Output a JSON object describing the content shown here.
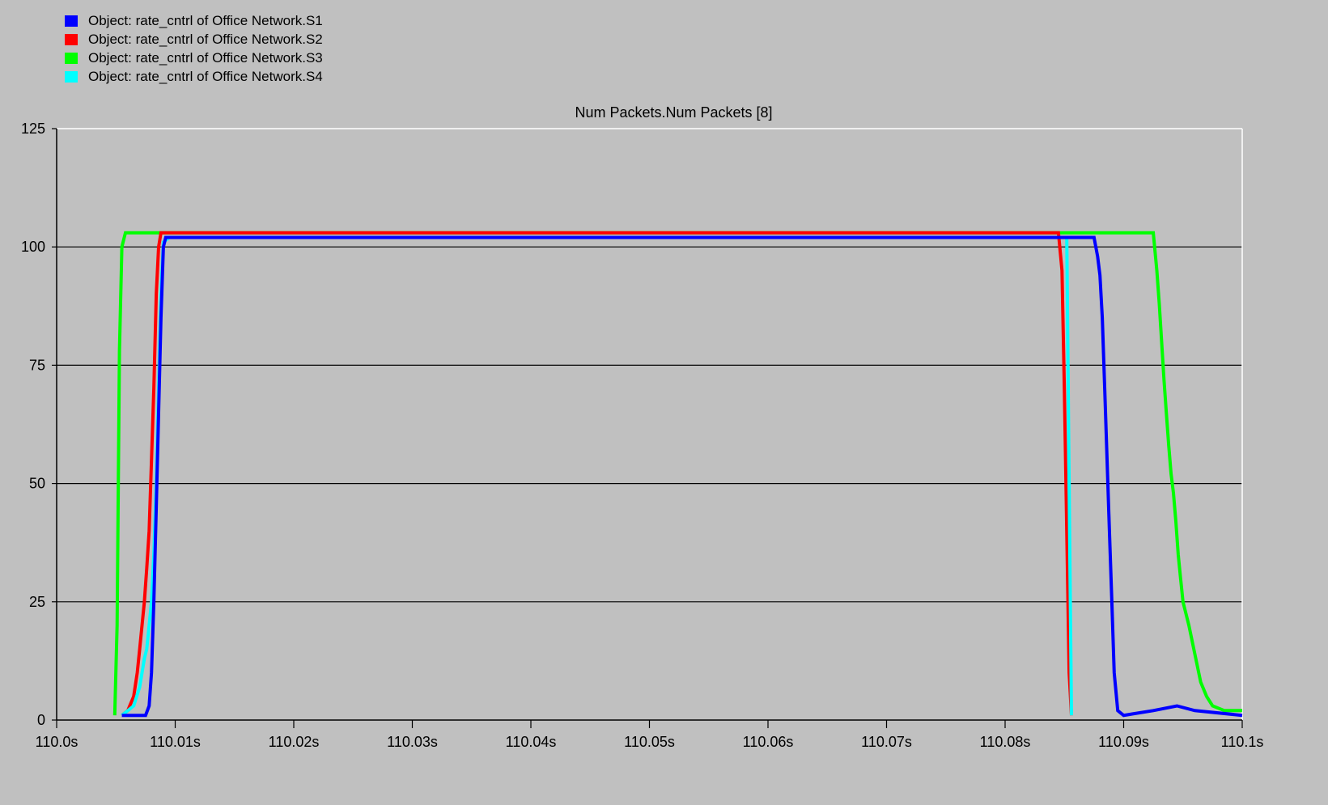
{
  "chart_data": {
    "type": "line",
    "title": "Num Packets.Num Packets [8]",
    "xlabel": "",
    "ylabel": "",
    "xlim": [
      110.0,
      110.1
    ],
    "ylim": [
      0,
      125
    ],
    "grid": "horizontal",
    "legend_position": "top-left",
    "y_ticks": [
      {
        "value": 0,
        "label": "0"
      },
      {
        "value": 25,
        "label": "25"
      },
      {
        "value": 50,
        "label": "50"
      },
      {
        "value": 75,
        "label": "75"
      },
      {
        "value": 100,
        "label": "100"
      },
      {
        "value": 125,
        "label": "125"
      }
    ],
    "x_ticks": [
      {
        "value": 110.0,
        "label": "110.0s"
      },
      {
        "value": 110.01,
        "label": "110.01s"
      },
      {
        "value": 110.02,
        "label": "110.02s"
      },
      {
        "value": 110.03,
        "label": "110.03s"
      },
      {
        "value": 110.04,
        "label": "110.04s"
      },
      {
        "value": 110.05,
        "label": "110.05s"
      },
      {
        "value": 110.06,
        "label": "110.06s"
      },
      {
        "value": 110.07,
        "label": "110.07s"
      },
      {
        "value": 110.08,
        "label": "110.08s"
      },
      {
        "value": 110.09,
        "label": "110.09s"
      },
      {
        "value": 110.1,
        "label": "110.1s"
      }
    ],
    "series": [
      {
        "name": "Object: rate_cntrl of Office Network.S3",
        "color": "#00ff00",
        "x": [
          110.0049,
          110.0051,
          110.0052,
          110.0053,
          110.0055,
          110.0058,
          110.0075,
          110.0085,
          110.088,
          110.0925,
          110.0928,
          110.093,
          110.0932,
          110.0934,
          110.0936,
          110.0938,
          110.094,
          110.0942,
          110.0944,
          110.0946,
          110.0948,
          110.095,
          110.0955,
          110.096,
          110.0965,
          110.097,
          110.0975,
          110.0985,
          110.099,
          110.1
        ],
        "y": [
          1,
          20,
          50,
          78,
          100,
          103,
          103,
          103,
          103,
          103,
          95,
          88,
          80,
          72,
          65,
          58,
          52,
          48,
          42,
          35,
          30,
          25,
          20,
          14,
          8,
          5,
          3,
          2,
          2,
          2
        ]
      },
      {
        "name": "Object: rate_cntrl of Office Network.S2",
        "color": "#ff0000",
        "x": [
          110.0055,
          110.006,
          110.0065,
          110.0068,
          110.007,
          110.0072,
          110.0074,
          110.0076,
          110.0078,
          110.008,
          110.0082,
          110.0084,
          110.0086,
          110.0088,
          110.0095,
          110.0845,
          110.0848,
          110.085,
          110.0852,
          110.0854,
          110.0856
        ],
        "y": [
          1,
          2,
          5,
          10,
          15,
          20,
          25,
          32,
          40,
          55,
          70,
          90,
          100,
          103,
          103,
          103,
          95,
          70,
          40,
          10,
          1
        ]
      },
      {
        "name": "Object: rate_cntrl of Office Network.S4",
        "color": "#00ffff",
        "x": [
          110.0055,
          110.0065,
          110.007,
          110.0072,
          110.0074,
          110.0076,
          110.0078,
          110.008,
          110.0082,
          110.0084,
          110.0086,
          110.0088,
          110.009,
          110.0095,
          110.0375,
          110.0852,
          110.0854,
          110.0856
        ],
        "y": [
          1,
          3,
          7,
          10,
          13,
          15,
          20,
          25,
          35,
          50,
          70,
          90,
          101,
          102,
          102,
          102,
          50,
          1
        ]
      },
      {
        "name": "Object: rate_cntrl of Office Network.S1",
        "color": "#0000ff",
        "x": [
          110.0055,
          110.0075,
          110.0078,
          110.008,
          110.0082,
          110.0084,
          110.0086,
          110.0088,
          110.009,
          110.0092,
          110.0095,
          110.085,
          110.0875,
          110.0878,
          110.088,
          110.0882,
          110.0884,
          110.0886,
          110.0888,
          110.089,
          110.0892,
          110.0895,
          110.09,
          110.0925,
          110.0945,
          110.096,
          110.1
        ],
        "y": [
          1,
          1,
          3,
          10,
          25,
          45,
          65,
          85,
          100,
          102,
          102,
          102,
          102,
          98,
          94,
          85,
          70,
          55,
          40,
          25,
          10,
          2,
          1,
          2,
          3,
          2,
          1
        ]
      }
    ]
  },
  "legend": {
    "items": [
      {
        "label": "Object: rate_cntrl of Office Network.S1",
        "color": "#0000ff"
      },
      {
        "label": "Object: rate_cntrl of Office Network.S2",
        "color": "#ff0000"
      },
      {
        "label": "Object: rate_cntrl of Office Network.S3",
        "color": "#00ff00"
      },
      {
        "label": "Object: rate_cntrl of Office Network.S4",
        "color": "#00ffff"
      }
    ]
  }
}
